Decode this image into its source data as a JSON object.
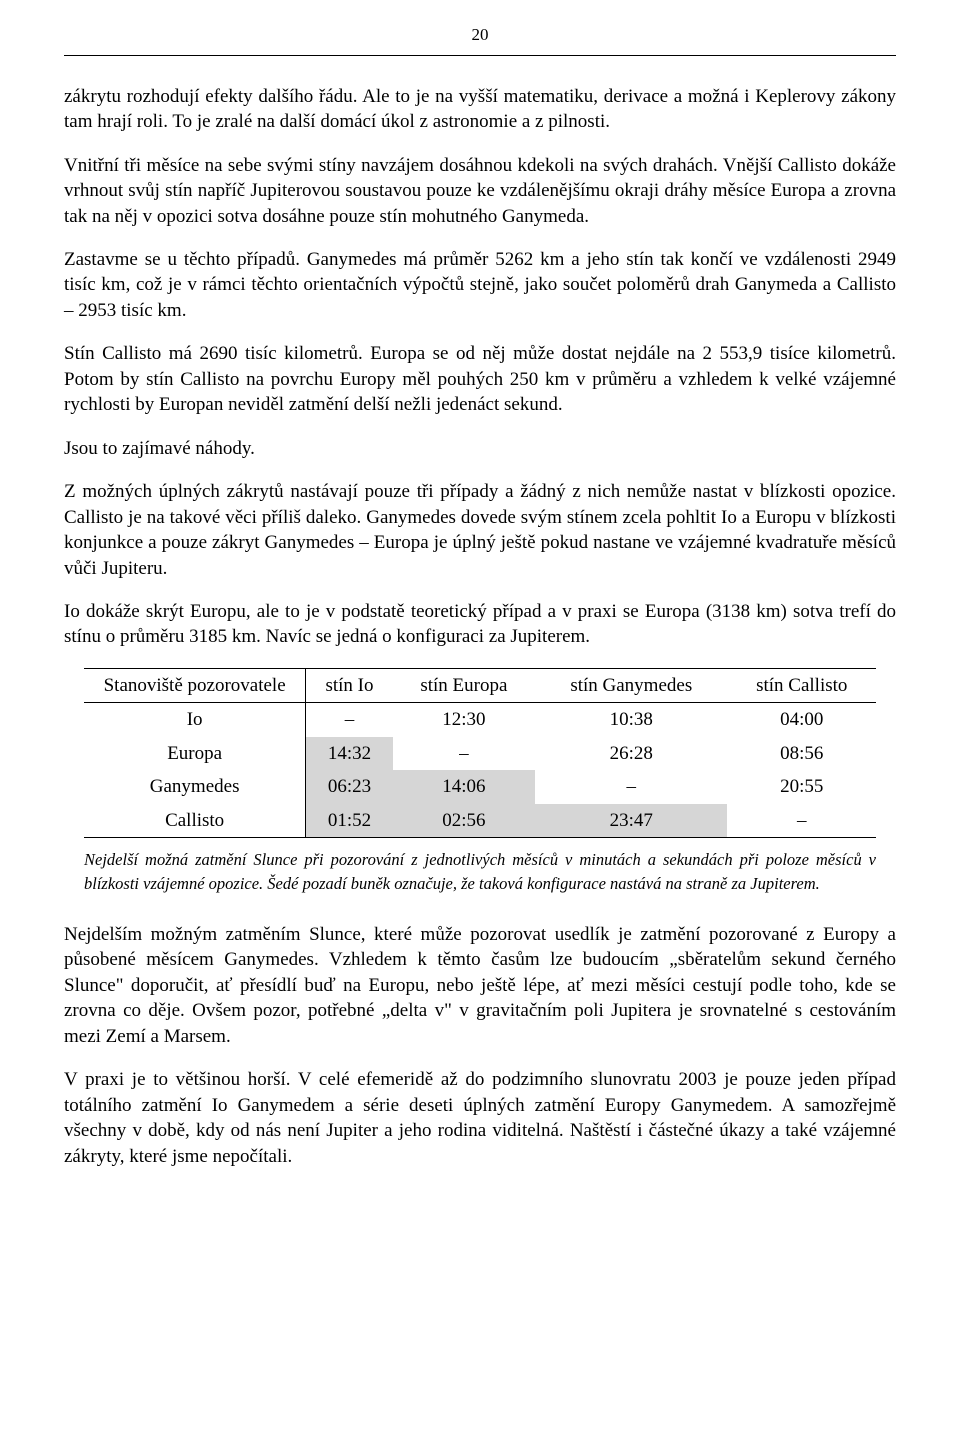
{
  "page_number": "20",
  "paragraphs": {
    "p1": "zákrytu rozhodují efekty dalšího řádu. Ale to je na vyšší matematiku, derivace a možná i Keplerovy zákony tam hrají roli. To je zralé na další domácí úkol z astronomie a z pilnosti.",
    "p2": "Vnitřní tři měsíce na sebe svými stíny navzájem dosáhnou kdekoli na svých drahách. Vnější Callisto dokáže vrhnout svůj stín napříč Jupiterovou soustavou pouze ke vzdálenějšímu okraji dráhy měsíce Europa a zrovna tak na něj v opozici sotva dosáhne pouze stín mohutného Ganymeda.",
    "p3": "Zastavme se u těchto případů. Ganymedes má průměr 5262 km a jeho stín tak končí ve vzdálenosti 2949 tisíc km, což je v rámci těchto orientačních výpočtů stejně, jako součet poloměrů drah Ganymeda a Callisto – 2953 tisíc km.",
    "p4": "Stín Callisto má 2690 tisíc kilometrů. Europa se od něj může dostat nejdále na 2 553,9 tisíce kilometrů. Potom by stín Callisto na povrchu Europy měl pouhých 250 km v průměru a vzhledem k velké vzájemné rychlosti by Europan neviděl zatmění delší nežli jedenáct sekund.",
    "p5": "Jsou to zajímavé náhody.",
    "p6": "Z možných úplných zákrytů nastávají pouze tři případy a žádný z nich nemůže nastat v blízkosti opozice. Callisto je na takové věci příliš daleko. Ganymedes dovede svým stínem zcela pohltit Io a Europu v blízkosti konjunkce a pouze zákryt Ganymedes – Europa je úplný ještě pokud nastane ve vzájemné kvadratuře měsíců vůči Jupiteru.",
    "p7": "Io dokáže skrýt Europu, ale to je v podstatě teoretický případ a v praxi se Europa (3138 km) sotva trefí do stínu o průměru 3185 km. Navíc se jedná o konfiguraci za Jupiterem.",
    "p8": "Nejdelším možným zatměním Slunce, které může pozorovat usedlík je zatmění pozorované z Europy a působené měsícem Ganymedes. Vzhledem k těmto časům lze budoucím „sběratelům sekund černého Slunce\" doporučit, ať přesídlí buď na Europu, nebo ještě lépe, ať mezi měsíci cestují podle toho, kde se zrovna co děje. Ovšem pozor, potřebné „delta v\" v gravitačním poli Jupitera je srovnatelné s cestováním mezi Zemí a Marsem.",
    "p9": "V praxi je to většinou horší. V celé efemeridě až do podzimního slunovratu 2003 je pouze jeden případ totálního zatmění Io Ganymedem a série deseti úplných zatmění Europy Ganymedem. A samozřejmě všechny v době, kdy od nás není Jupiter a jeho rodina viditelná. Naštěstí i částečné úkazy a také vzájemné zákryty, které jsme nepočítali."
  },
  "table": {
    "headers": {
      "h0": "Stanoviště pozorovatele",
      "h1": "stín Io",
      "h2": "stín Europa",
      "h3": "stín Ganymedes",
      "h4": "stín Callisto"
    },
    "rows": [
      {
        "label": "Io",
        "c1": "–",
        "c2": "12:30",
        "c3": "10:38",
        "c4": "04:00",
        "shaded": []
      },
      {
        "label": "Europa",
        "c1": "14:32",
        "c2": "–",
        "c3": "26:28",
        "c4": "08:56",
        "shaded": [
          "c1"
        ]
      },
      {
        "label": "Ganymedes",
        "c1": "06:23",
        "c2": "14:06",
        "c3": "–",
        "c4": "20:55",
        "shaded": [
          "c1",
          "c2"
        ]
      },
      {
        "label": "Callisto",
        "c1": "01:52",
        "c2": "02:56",
        "c3": "23:47",
        "c4": "–",
        "shaded": [
          "c1",
          "c2",
          "c3"
        ]
      }
    ]
  },
  "caption": "Nejdelší možná zatmění Slunce při pozorování z jednotlivých měsíců v minutách a sekundách při poloze měsíců v blízkosti vzájemné opozice. Šedé pozadí buněk označuje, že taková konfigurace nastává na straně za Jupiterem.",
  "colors": {
    "shaded_bg": "#d6d6d6",
    "text": "#000000",
    "background": "#ffffff"
  }
}
